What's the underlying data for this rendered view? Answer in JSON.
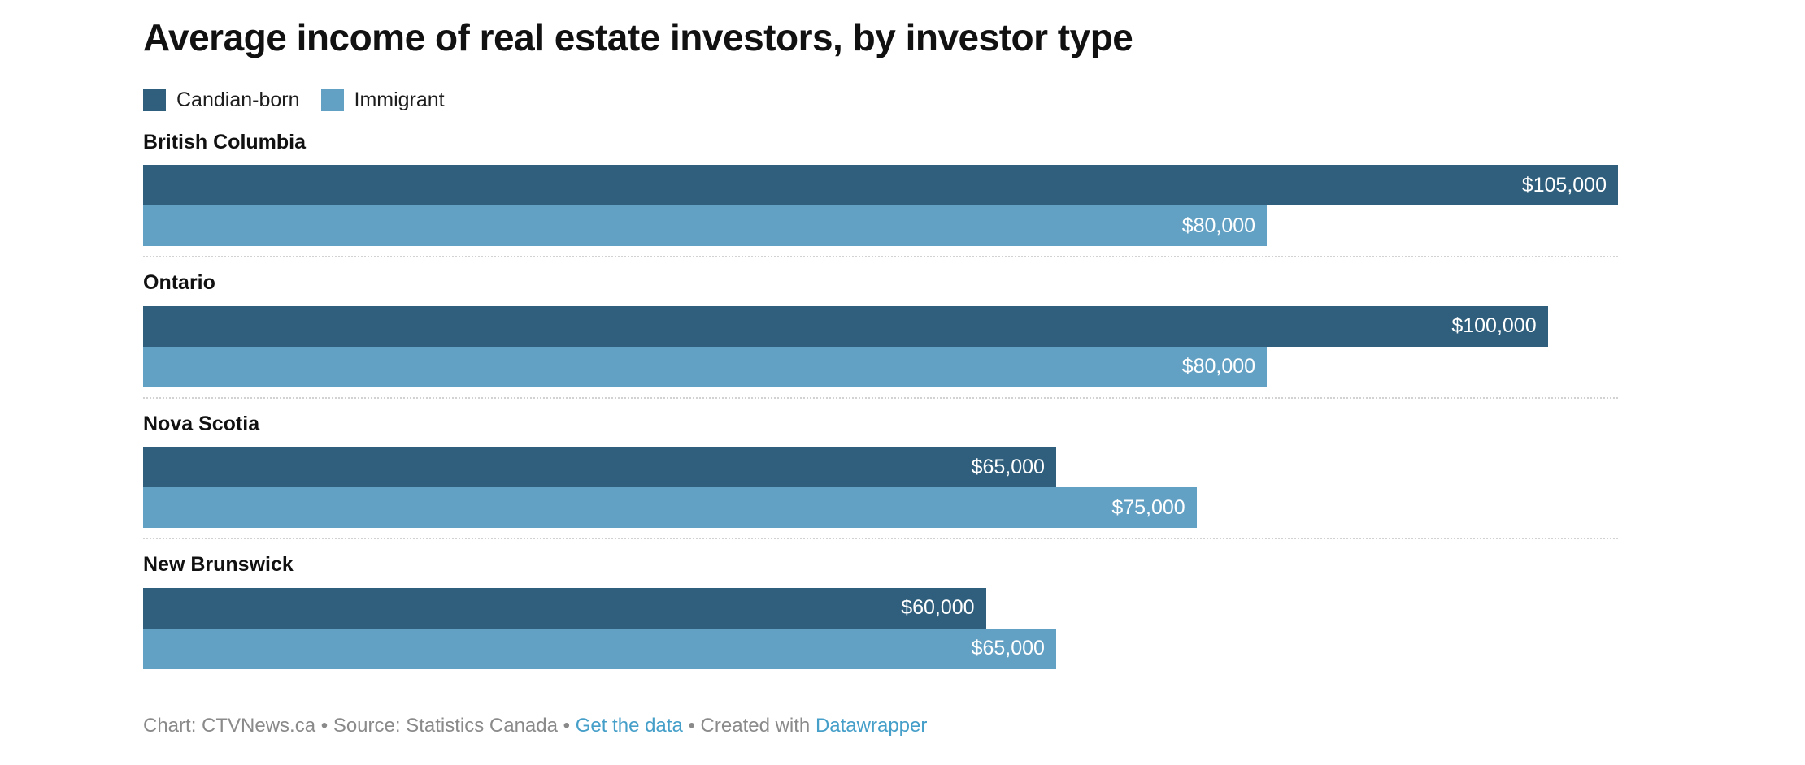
{
  "title": "Average income of real estate investors, by investor type",
  "colors": {
    "canadian_born": "#2f5f7c",
    "immigrant": "#63a1c4",
    "separator": "#d2d2d2",
    "footer_text": "#8a8a8a",
    "footer_link": "#459fc9",
    "value_label": "#ffffff"
  },
  "legend": {
    "items": [
      {
        "label": "Candian-born",
        "color": "#2f5f7c"
      },
      {
        "label": "Immigrant",
        "color": "#63a1c4"
      }
    ]
  },
  "chart_data": {
    "type": "bar",
    "orientation": "horizontal",
    "title": "Average income of real estate investors, by investor type",
    "categories": [
      "British Columbia",
      "Ontario",
      "Nova Scotia",
      "New Brunswick"
    ],
    "series": [
      {
        "name": "Candian-born",
        "color": "#2f5f7c",
        "values": [
          105000,
          100000,
          65000,
          60000
        ],
        "labels": [
          "$105,000",
          "$100,000",
          "$65,000",
          "$60,000"
        ]
      },
      {
        "name": "Immigrant",
        "color": "#63a1c4",
        "values": [
          80000,
          80000,
          75000,
          65000
        ],
        "labels": [
          "$80,000",
          "$80,000",
          "$75,000",
          "$65,000"
        ]
      }
    ],
    "xmax": 105000,
    "grid": false,
    "legend_position": "top",
    "value_labels_inside_bars": true
  },
  "footer": {
    "separator": "•",
    "items": [
      {
        "text": "Chart: CTVNews.ca",
        "link": false
      },
      {
        "text": "Source: Statistics Canada",
        "link": false
      },
      {
        "text": "Get the data",
        "link": true
      },
      {
        "prefix": "Created with ",
        "text": "Datawrapper",
        "link": true
      }
    ]
  }
}
